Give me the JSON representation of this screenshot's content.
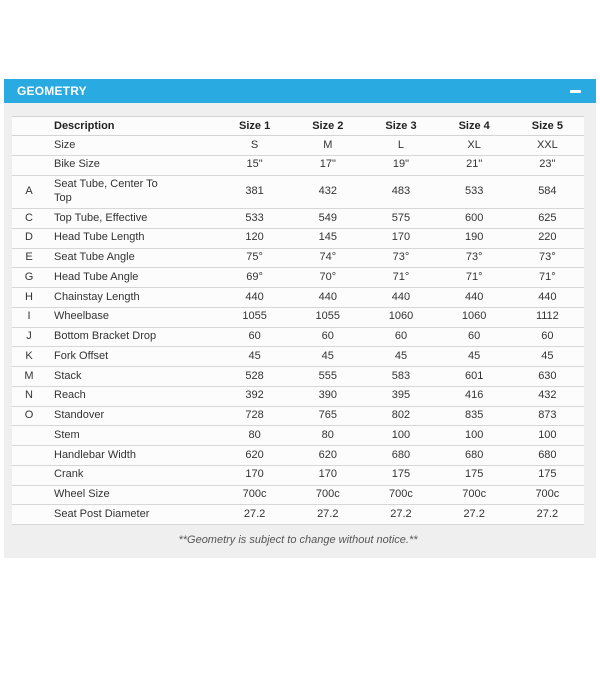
{
  "colors": {
    "accent_blue": "#29abe2",
    "panel_gray": "#efefef",
    "row_white": "#fcfcfc",
    "divider_gray": "#d7d7d7"
  },
  "accordion": {
    "title": "GEOMETRY",
    "state": "expanded"
  },
  "table": {
    "columns": [
      "Description",
      "Size 1",
      "Size 2",
      "Size 3",
      "Size 4",
      "Size 5"
    ],
    "rows": [
      {
        "letter": "",
        "label": "Size",
        "values": [
          "S",
          "M",
          "L",
          "XL",
          "XXL"
        ]
      },
      {
        "letter": "",
        "label": "Bike Size",
        "values": [
          "15\"",
          "17\"",
          "19\"",
          "21\"",
          "23\""
        ]
      },
      {
        "letter": "A",
        "label": "Seat Tube, Center To\nTop",
        "values": [
          "381",
          "432",
          "483",
          "533",
          "584"
        ]
      },
      {
        "letter": "C",
        "label": "Top Tube, Effective",
        "values": [
          "533",
          "549",
          "575",
          "600",
          "625"
        ]
      },
      {
        "letter": "D",
        "label": "Head Tube Length",
        "values": [
          "120",
          "145",
          "170",
          "190",
          "220"
        ]
      },
      {
        "letter": "E",
        "label": "Seat Tube Angle",
        "values": [
          "75°",
          "74°",
          "73°",
          "73°",
          "73°"
        ]
      },
      {
        "letter": "G",
        "label": "Head Tube Angle",
        "values": [
          "69°",
          "70°",
          "71°",
          "71°",
          "71°"
        ]
      },
      {
        "letter": "H",
        "label": "Chainstay Length",
        "values": [
          "440",
          "440",
          "440",
          "440",
          "440"
        ]
      },
      {
        "letter": "I",
        "label": "Wheelbase",
        "values": [
          "1055",
          "1055",
          "1060",
          "1060",
          "1112"
        ]
      },
      {
        "letter": "J",
        "label": "Bottom Bracket Drop",
        "values": [
          "60",
          "60",
          "60",
          "60",
          "60"
        ]
      },
      {
        "letter": "K",
        "label": "Fork Offset",
        "values": [
          "45",
          "45",
          "45",
          "45",
          "45"
        ]
      },
      {
        "letter": "M",
        "label": "Stack",
        "values": [
          "528",
          "555",
          "583",
          "601",
          "630"
        ]
      },
      {
        "letter": "N",
        "label": "Reach",
        "values": [
          "392",
          "390",
          "395",
          "416",
          "432"
        ]
      },
      {
        "letter": "O",
        "label": "Standover",
        "values": [
          "728",
          "765",
          "802",
          "835",
          "873"
        ]
      },
      {
        "letter": "",
        "label": "Stem",
        "values": [
          "80",
          "80",
          "100",
          "100",
          "100"
        ]
      },
      {
        "letter": "",
        "label": "Handlebar Width",
        "values": [
          "620",
          "620",
          "680",
          "680",
          "680"
        ]
      },
      {
        "letter": "",
        "label": "Crank",
        "values": [
          "170",
          "170",
          "175",
          "175",
          "175"
        ]
      },
      {
        "letter": "",
        "label": "Wheel Size",
        "values": [
          "700c",
          "700c",
          "700c",
          "700c",
          "700c"
        ]
      },
      {
        "letter": "",
        "label": "Seat Post Diameter",
        "values": [
          "27.2",
          "27.2",
          "27.2",
          "27.2",
          "27.2"
        ]
      }
    ],
    "footnote": "**Geometry is subject to change without notice.**"
  }
}
